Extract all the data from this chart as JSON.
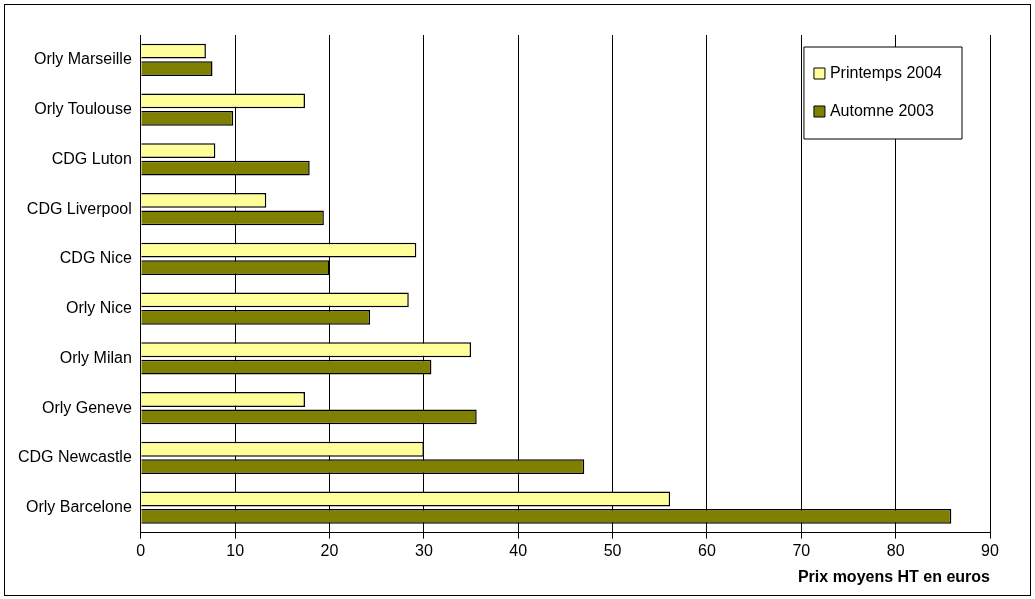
{
  "chart_data": {
    "type": "bar",
    "orientation": "horizontal",
    "xlabel": "Prix moyens HT en euros",
    "categories": [
      "Orly Marseille",
      "Orly Toulouse",
      "CDG Luton",
      "CDG Liverpool",
      "CDG Nice",
      "Orly Nice",
      "Orly Milan",
      "Orly Geneve",
      "CDG Newcastle",
      "Orly Barcelone"
    ],
    "series": [
      {
        "name": "Printemps 2004",
        "color": "#ffff99",
        "values": [
          6.9,
          17.4,
          7.9,
          13.3,
          29.2,
          28.4,
          35.0,
          17.4,
          30.0,
          56.1
        ]
      },
      {
        "name": "Automne 2003",
        "color": "#808000",
        "values": [
          7.6,
          9.8,
          17.9,
          19.4,
          20.0,
          24.3,
          30.8,
          35.6,
          47.0,
          85.9
        ]
      }
    ],
    "xlim": [
      0,
      90
    ],
    "xticks": [
      0,
      10,
      20,
      30,
      40,
      50,
      60,
      70,
      80,
      90
    ],
    "grid": "x",
    "legend": "top right"
  }
}
